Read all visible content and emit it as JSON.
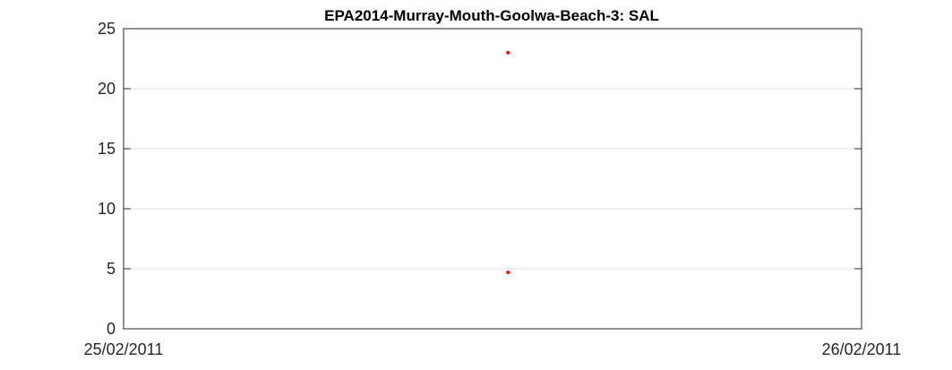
{
  "chart_data": {
    "type": "scatter",
    "title": "EPA2014-Murray-Mouth-Goolwa-Beach-3: SAL",
    "xlabel": "",
    "ylabel": "",
    "x_axis": {
      "type": "date",
      "range": [
        "25/02/2011",
        "26/02/2011"
      ],
      "tick_labels": [
        "25/02/2011",
        "26/02/2011"
      ]
    },
    "ylim": [
      0,
      25
    ],
    "y_ticks": [
      0,
      5,
      10,
      15,
      20,
      25
    ],
    "grid": "horizontal",
    "marker_color": "#ff0000",
    "points": [
      {
        "x": "25/02/2011 12:30",
        "y": 23.0
      },
      {
        "x": "25/02/2011 12:30",
        "y": 4.7
      }
    ]
  }
}
